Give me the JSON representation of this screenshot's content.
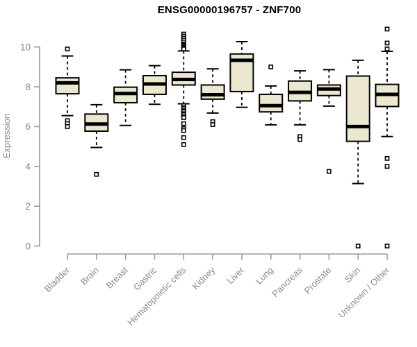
{
  "chart_data": {
    "type": "boxplot",
    "title": "ENSG00000196757 - ZNF700",
    "ylabel": "Expression",
    "xlabel": "",
    "ylim": [
      0,
      11
    ],
    "yticks": [
      0,
      2,
      4,
      6,
      8,
      10
    ],
    "grid": false,
    "legend": "none",
    "categories": [
      "Bladder",
      "Brain",
      "Breast",
      "Gastric",
      "Hematopoietic cells",
      "Kidney",
      "Liver",
      "Lung",
      "Pancreas",
      "Prostate",
      "Skin",
      "Unknown / Other"
    ],
    "series": [
      {
        "name": "Bladder",
        "whisker_low": 6.55,
        "q1": 7.65,
        "median": 8.2,
        "q3": 8.45,
        "whisker_high": 9.55,
        "outliers": [
          9.9,
          6.3,
          6.15,
          6.0
        ]
      },
      {
        "name": "Brain",
        "whisker_low": 4.95,
        "q1": 5.77,
        "median": 6.13,
        "q3": 6.63,
        "whisker_high": 7.1,
        "outliers": [
          3.6
        ]
      },
      {
        "name": "Breast",
        "whisker_low": 6.06,
        "q1": 7.2,
        "median": 7.66,
        "q3": 7.98,
        "whisker_high": 8.85,
        "outliers": []
      },
      {
        "name": "Gastric",
        "whisker_low": 7.12,
        "q1": 7.62,
        "median": 8.14,
        "q3": 8.56,
        "whisker_high": 9.06,
        "outliers": []
      },
      {
        "name": "Hematopoietic cells",
        "whisker_low": 7.15,
        "q1": 8.09,
        "median": 8.37,
        "q3": 8.73,
        "whisker_high": 9.8,
        "outliers": [
          10.65,
          10.55,
          10.45,
          10.35,
          10.25,
          10.15,
          10.1,
          10.05,
          10.0,
          9.95,
          9.9,
          7.05,
          6.95,
          6.9,
          6.8,
          6.75,
          6.65,
          6.6,
          6.5,
          6.45,
          6.15,
          5.9,
          5.8,
          5.45,
          5.1
        ]
      },
      {
        "name": "Kidney",
        "whisker_low": 6.68,
        "q1": 7.38,
        "median": 7.6,
        "q3": 8.09,
        "whisker_high": 8.9,
        "outliers": [
          6.25,
          6.1
        ]
      },
      {
        "name": "Liver",
        "whisker_low": 6.97,
        "q1": 7.76,
        "median": 9.33,
        "q3": 9.65,
        "whisker_high": 10.27,
        "outliers": []
      },
      {
        "name": "Lung",
        "whisker_low": 6.09,
        "q1": 6.74,
        "median": 7.05,
        "q3": 7.62,
        "whisker_high": 8.04,
        "outliers": [
          9.0
        ]
      },
      {
        "name": "Pancreas",
        "whisker_low": 6.09,
        "q1": 7.29,
        "median": 7.72,
        "q3": 8.29,
        "whisker_high": 8.8,
        "outliers": [
          5.5,
          5.35
        ]
      },
      {
        "name": "Prostate",
        "whisker_low": 7.03,
        "q1": 7.56,
        "median": 7.89,
        "q3": 8.09,
        "whisker_high": 8.86,
        "outliers": [
          3.75
        ]
      },
      {
        "name": "Skin",
        "whisker_low": 3.14,
        "q1": 5.26,
        "median": 6.0,
        "q3": 8.54,
        "whisker_high": 9.33,
        "outliers": [
          0.0
        ]
      },
      {
        "name": "Unknown / Other",
        "whisker_low": 5.5,
        "q1": 7.01,
        "median": 7.62,
        "q3": 8.12,
        "whisker_high": 9.78,
        "outliers": [
          10.9,
          10.2,
          9.9,
          4.4,
          4.0,
          0.0
        ]
      }
    ],
    "colors": {
      "box_fill": "#ece7cf",
      "box_border": "#000000",
      "median": "#000000",
      "whisker": "#000000",
      "outlier_fill": "#ffffff",
      "outlier_border": "#000000",
      "axis": "#9b9b9b",
      "tick_label": "#8a8a8a",
      "title": "#000000",
      "background": "#ffffff"
    }
  }
}
